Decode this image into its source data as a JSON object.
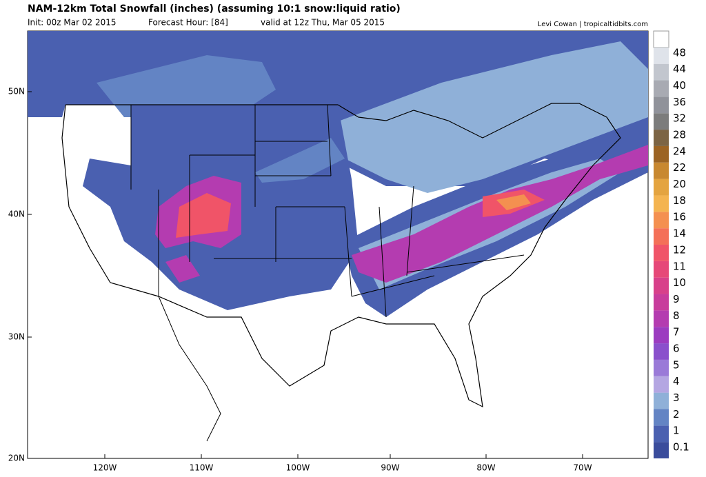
{
  "header": {
    "title": "NAM-12km Total Snowfall (inches) (assuming 10:1 snow:liquid ratio)",
    "init": "Init: 00z Mar 02 2015",
    "forecast_hour": "Forecast Hour: [84]",
    "valid": "valid at 12z Thu, Mar 05 2015",
    "credit": "Levi Cowan | tropicaltidbits.com"
  },
  "map": {
    "lat_labels": [
      "50N",
      "40N",
      "30N",
      "20N"
    ],
    "lon_labels": [
      "120W",
      "110W",
      "100W",
      "90W",
      "80W",
      "70W"
    ]
  },
  "colorbar": {
    "levels": [
      {
        "label": "0.1",
        "color": "#3a4c9c"
      },
      {
        "label": "1",
        "color": "#4a60b0"
      },
      {
        "label": "2",
        "color": "#6384c4"
      },
      {
        "label": "3",
        "color": "#8fb0d8"
      },
      {
        "label": "4",
        "color": "#b4a6e2"
      },
      {
        "label": "5",
        "color": "#9a7ad8"
      },
      {
        "label": "6",
        "color": "#8a50cc"
      },
      {
        "label": "7",
        "color": "#9c3cc0"
      },
      {
        "label": "8",
        "color": "#b43cb0"
      },
      {
        "label": "9",
        "color": "#c83c9c"
      },
      {
        "label": "10",
        "color": "#d8408a"
      },
      {
        "label": "11",
        "color": "#e64878"
      },
      {
        "label": "12",
        "color": "#f05468"
      },
      {
        "label": "14",
        "color": "#f47058"
      },
      {
        "label": "16",
        "color": "#f49050"
      },
      {
        "label": "18",
        "color": "#f4b450"
      },
      {
        "label": "20",
        "color": "#e4a440"
      },
      {
        "label": "22",
        "color": "#c88830"
      },
      {
        "label": "24",
        "color": "#9c6424"
      },
      {
        "label": "28",
        "color": "#7c6444"
      },
      {
        "label": "32",
        "color": "#7c7c7c"
      },
      {
        "label": "36",
        "color": "#90929a"
      },
      {
        "label": "40",
        "color": "#a8aab2"
      },
      {
        "label": "44",
        "color": "#c2c6ce"
      },
      {
        "label": "48",
        "color": "#dfe3ea"
      }
    ]
  }
}
